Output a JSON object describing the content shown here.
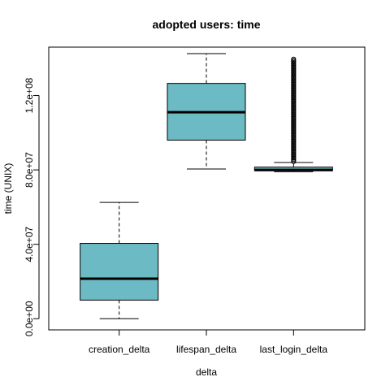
{
  "chart_data": {
    "type": "boxplot",
    "title": "adopted users: time",
    "xlabel": "delta",
    "ylabel": "time (UNIX)",
    "ylim": [
      -6000000,
      146000000
    ],
    "yticks": [
      {
        "value": 0,
        "label": "0.0e+00"
      },
      {
        "value": 40000000,
        "label": "4.0e+07"
      },
      {
        "value": 80000000,
        "label": "8.0e+07"
      },
      {
        "value": 120000000,
        "label": "1.2e+08"
      }
    ],
    "box_color": "#6cbac4",
    "grid": false,
    "categories": [
      "creation_delta",
      "lifespan_delta",
      "last_login_delta"
    ],
    "boxes": [
      {
        "name": "creation_delta",
        "whisker_low": 0,
        "q1": 10000000,
        "median": 21500000,
        "q3": 40500000,
        "whisker_high": 62500000,
        "outliers_from": null,
        "outliers_to": null
      },
      {
        "name": "lifespan_delta",
        "whisker_low": 80500000,
        "q1": 96000000,
        "median": 111000000,
        "q3": 126500000,
        "whisker_high": 142500000,
        "outliers_from": null,
        "outliers_to": null
      },
      {
        "name": "last_login_delta",
        "whisker_low": 79000000,
        "q1": 79500000,
        "median": 80000000,
        "q3": 81500000,
        "whisker_high": 84000000,
        "outliers_from": 84500000,
        "outliers_to": 140000000
      }
    ]
  }
}
